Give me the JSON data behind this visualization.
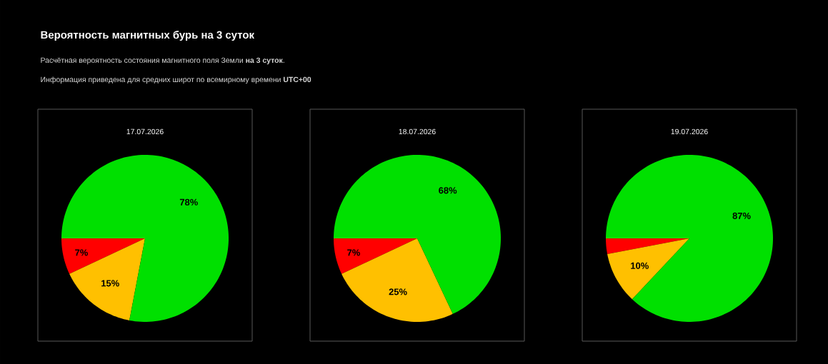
{
  "chart_data": [
    {
      "type": "other",
      "title": "Вероятность магнитных бурь на 3 суток",
      "subtitle": "Расчётная вероятность состояния магнитного поля Земли **на 3 суток**.",
      "annotations": [
        "Информация приведена для средних широт по всемирному времени **UTC+00**"
      ]
    },
    {
      "type": "pie",
      "title": "17.07.2026",
      "categories": [
        null,
        null,
        null
      ],
      "values": [
        7,
        15,
        78
      ],
      "colors": [
        "#ff0000",
        "#ffc000",
        "#00e000"
      ],
      "value_labels": [
        "7%",
        "15%",
        "78%"
      ]
    },
    {
      "type": "pie",
      "title": "18.07.2026",
      "categories": [
        null,
        null,
        null
      ],
      "values": [
        7,
        25,
        68
      ],
      "colors": [
        "#ff0000",
        "#ffc000",
        "#00e000"
      ],
      "value_labels": [
        "7%",
        "25%",
        "68%"
      ]
    },
    {
      "type": "pie",
      "title": "19.07.2026",
      "categories": [
        null,
        null,
        null
      ],
      "values": [
        3,
        10,
        87
      ],
      "colors": [
        "#ff0000",
        "#ffc000",
        "#00e000"
      ],
      "value_labels": [
        null,
        "10%",
        "87%"
      ]
    }
  ]
}
